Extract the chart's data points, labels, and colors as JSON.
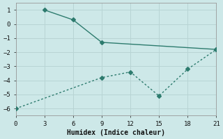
{
  "line1_x": [
    3,
    6,
    9,
    21
  ],
  "line1_y": [
    1,
    0.3,
    -1.3,
    -1.8
  ],
  "line2_x": [
    0,
    9,
    12,
    15,
    18,
    21
  ],
  "line2_y": [
    -6,
    -3.8,
    -3.4,
    -5.1,
    -3.2,
    -1.8
  ],
  "line_color": "#2d7b6e",
  "bg_color": "#cde8e8",
  "grid_color": "#b8d4d4",
  "xlabel": "Humidex (Indice chaleur)",
  "xlim": [
    0,
    21
  ],
  "ylim": [
    -6.5,
    1.5
  ],
  "xticks": [
    0,
    3,
    6,
    9,
    12,
    15,
    18,
    21
  ],
  "yticks": [
    -6,
    -5,
    -4,
    -3,
    -2,
    -1,
    0,
    1
  ],
  "marker": "D",
  "markersize": 3,
  "linewidth": 1.0
}
